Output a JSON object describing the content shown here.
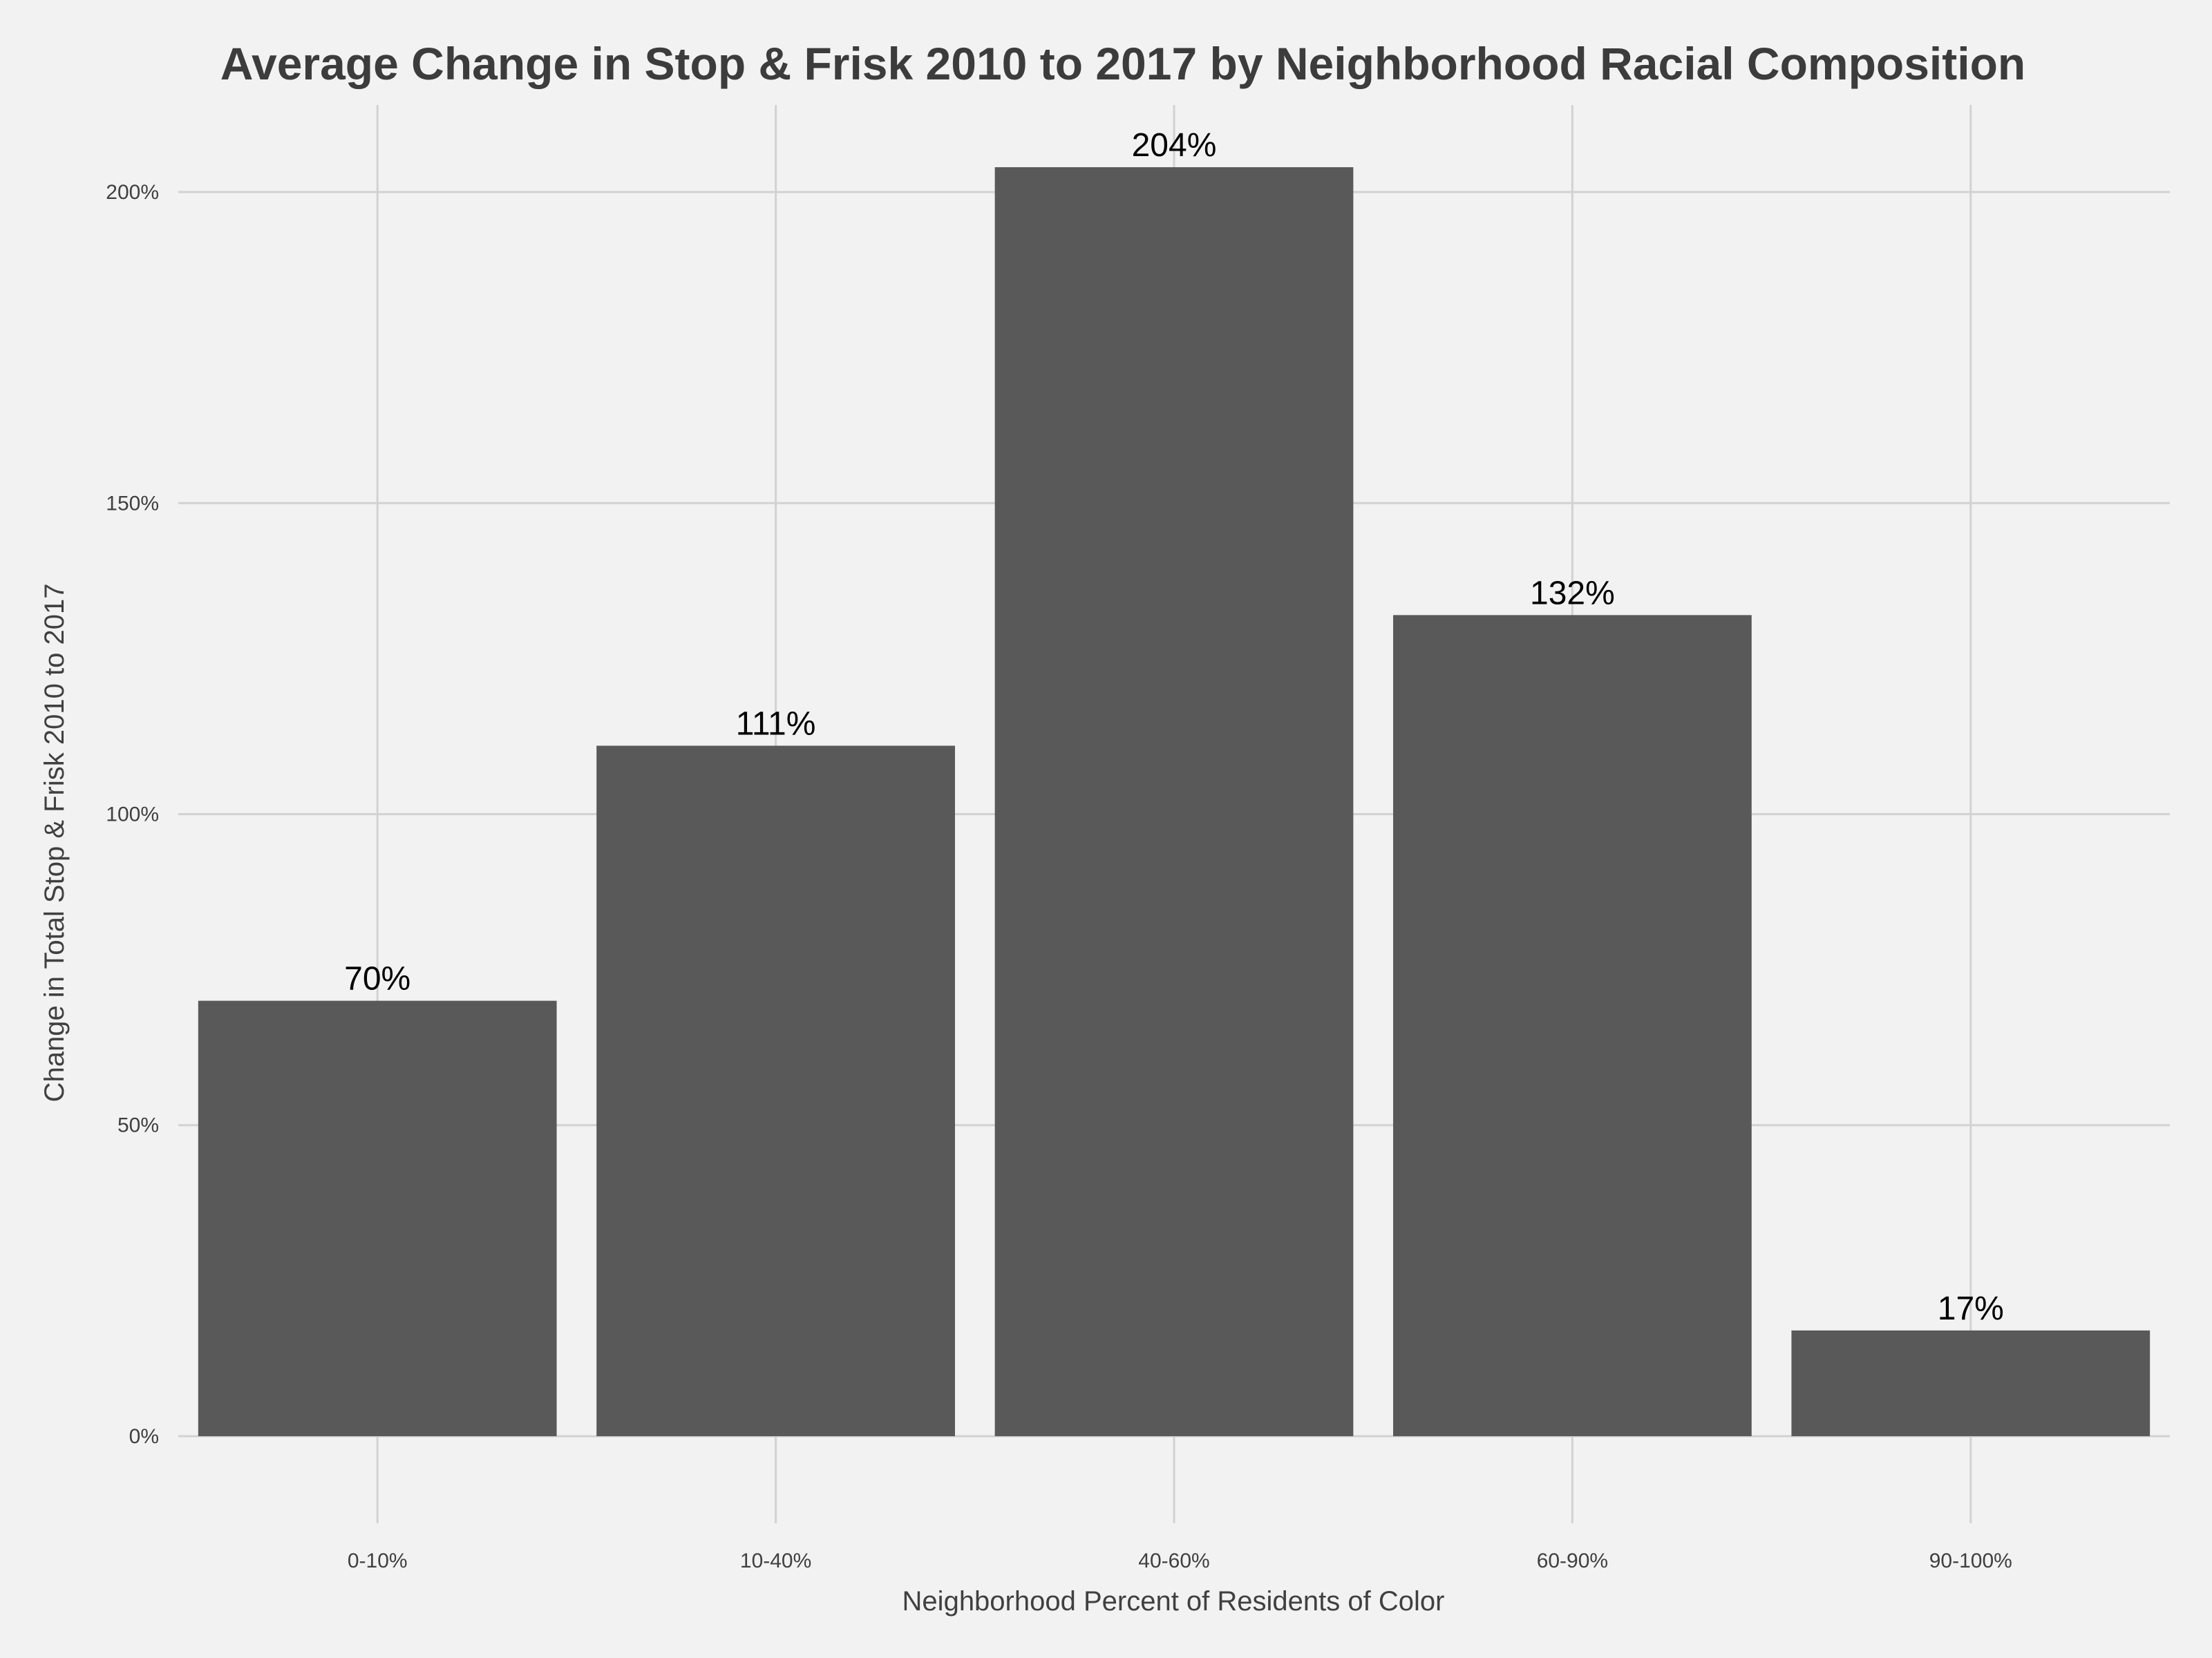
{
  "chart_data": {
    "type": "bar",
    "title": "Average Change in Stop & Frisk 2010 to 2017 by Neighborhood Racial Composition",
    "xlabel": "Neighborhood Percent of Residents of Color",
    "ylabel": "Change in Total Stop & Frisk 2010 to 2017",
    "categories": [
      "0-10%",
      "10-40%",
      "40-60%",
      "60-90%",
      "90-100%"
    ],
    "values": [
      70,
      111,
      204,
      132,
      17
    ],
    "data_labels": [
      "70%",
      "111%",
      "204%",
      "132%",
      "17%"
    ],
    "yticks": [
      0,
      50,
      100,
      150,
      200
    ],
    "ytick_labels": [
      "0%",
      "50%",
      "100%",
      "150%",
      "200%"
    ],
    "ylim": [
      -14,
      214
    ],
    "grid": true,
    "bar_color": "#595959",
    "background_color": "#f2f2f2",
    "grid_color": "#d2d2d2"
  }
}
